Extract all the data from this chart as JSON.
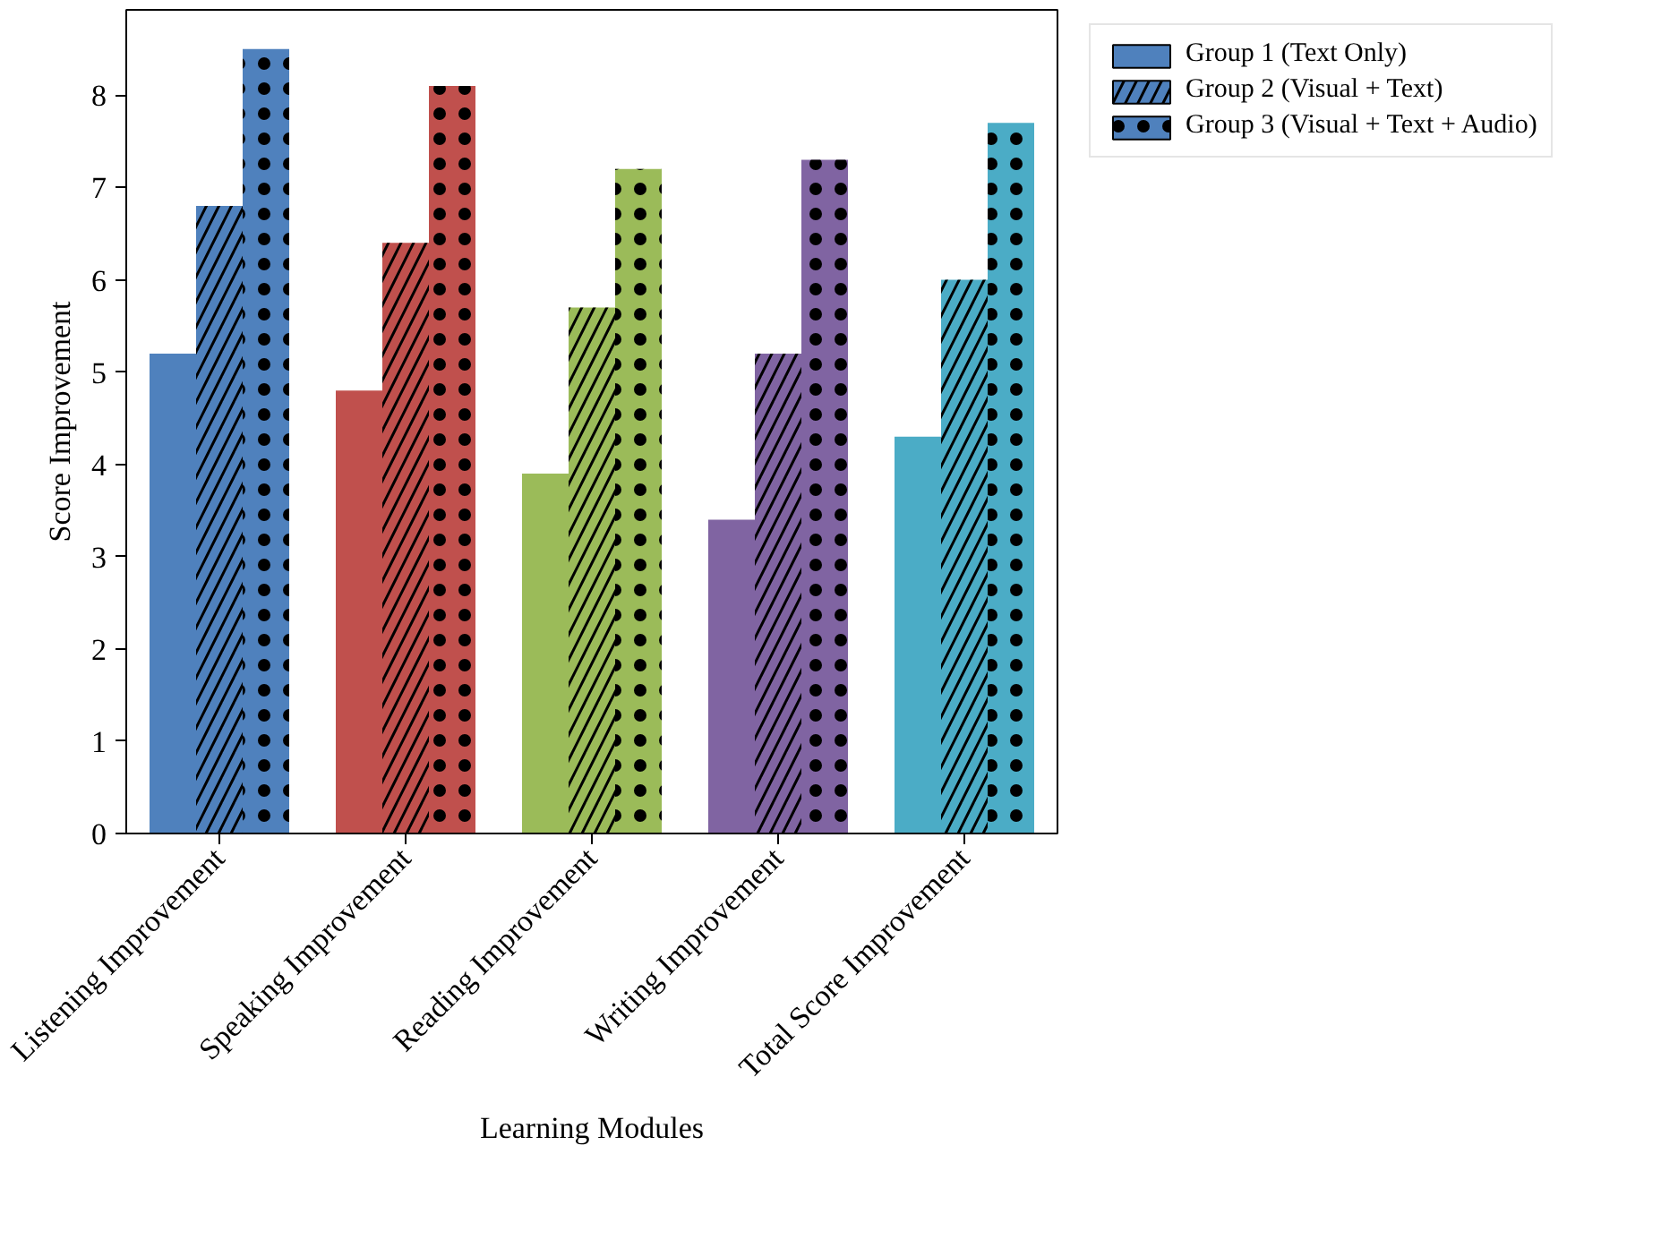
{
  "chart_data": {
    "type": "bar",
    "xlabel": "Learning Modules",
    "ylabel": "Score Improvement",
    "categories": [
      "Listening Improvement",
      "Speaking Improvement",
      "Reading Improvement",
      "Writing Improvement",
      "Total Score Improvement"
    ],
    "series": [
      {
        "name": "Group 1 (Text Only)",
        "colors": [
          "#4f81bd",
          "#c0504d",
          "#9bbb59",
          "#8064a2",
          "#4bacc6"
        ],
        "values": [
          5.2,
          4.8,
          3.9,
          3.4,
          4.3
        ]
      },
      {
        "name": "Group 2 (Visual + Text)",
        "colors": [
          "#4f81bd",
          "#c0504d",
          "#9bbb59",
          "#8064a2",
          "#4bacc6"
        ],
        "values": [
          6.8,
          6.4,
          5.7,
          5.2,
          6.0
        ]
      },
      {
        "name": "Group 3 (Visual + Text + Audio)",
        "colors": [
          "#4f81bd",
          "#c0504d",
          "#9bbb59",
          "#8064a2",
          "#4bacc6"
        ],
        "values": [
          8.5,
          8.1,
          7.2,
          7.3,
          7.7
        ]
      }
    ],
    "ylim": [
      0,
      8.925
    ],
    "yticks": [
      0,
      1,
      2,
      3,
      4,
      5,
      6,
      7,
      8
    ],
    "grid": false,
    "legend": "right"
  }
}
